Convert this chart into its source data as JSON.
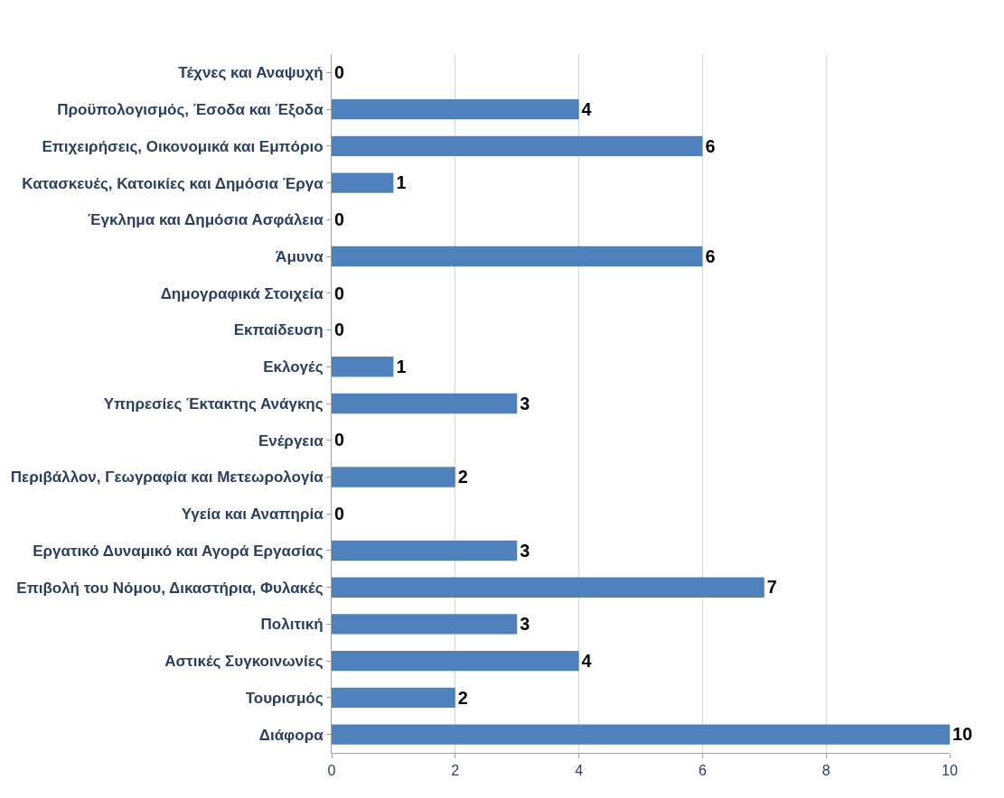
{
  "chart_data": {
    "type": "bar",
    "orientation": "horizontal",
    "categories": [
      "Τέχνες και Αναψυχή",
      "Προϋπολογισμός, Έσοδα και Έξοδα",
      "Επιχειρήσεις, Οικονομικά και Εμπόριο",
      "Κατασκευές, Κατοικίες και Δημόσια Έργα",
      "Έγκλημα και Δημόσια Ασφάλεια",
      "Άμυνα",
      "Δημογραφικά Στοιχεία",
      "Εκπαίδευση",
      "Εκλογές",
      "Υπηρεσίες Έκτακτης Ανάγκης",
      "Ενέργεια",
      "Περιβάλλον, Γεωγραφία και Μετεωρολογία",
      "Υγεία και Αναπηρία",
      "Εργατικό Δυναμικό και Αγορά Εργασίας",
      "Επιβολή του Νόμου, Δικαστήρια, Φυλακές",
      "Πολιτική",
      "Αστικές Συγκοινωνίες",
      "Τουρισμός",
      "Διάφορα"
    ],
    "values": [
      0,
      4,
      6,
      1,
      0,
      6,
      0,
      0,
      1,
      3,
      0,
      2,
      0,
      3,
      7,
      3,
      4,
      2,
      10
    ],
    "color": "#4f81bd",
    "xlim": [
      0,
      10
    ],
    "xticks": [
      0,
      2,
      4,
      6,
      8,
      10
    ],
    "grid": "x",
    "data_labels": true,
    "legend": false
  }
}
